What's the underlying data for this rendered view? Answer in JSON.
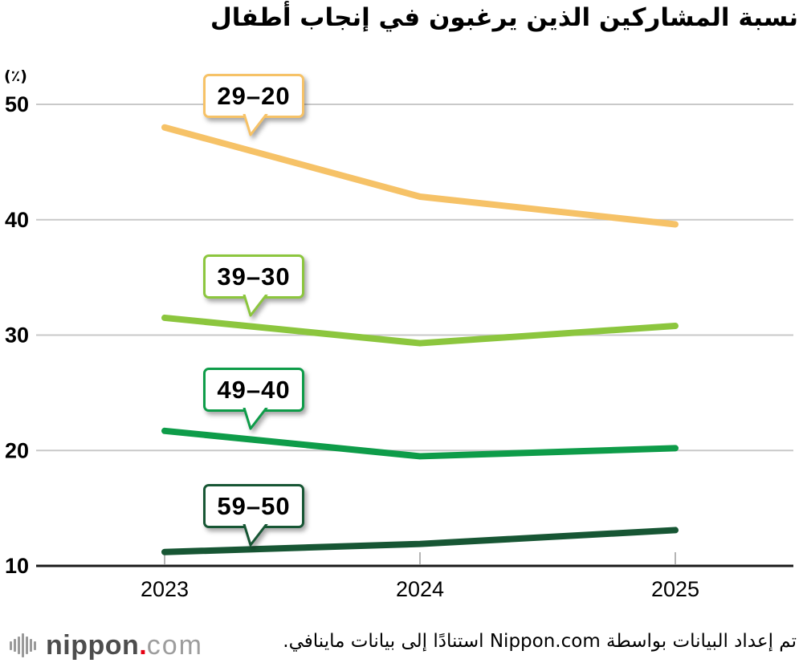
{
  "title": "نسبة المشاركين الذين يرغبون في إنجاب أطفال",
  "unit_label": "(٪)",
  "chart_data": {
    "type": "line",
    "title": "نسبة المشاركين الذين يرغبون في إنجاب أطفال",
    "ylabel": "(٪)",
    "categories": [
      "2023",
      "2024",
      "2025"
    ],
    "series": [
      {
        "name": "20–29",
        "label_display": "29–20",
        "color": "#F6C267",
        "values": [
          48.0,
          42.0,
          39.6
        ]
      },
      {
        "name": "30–39",
        "label_display": "39–30",
        "color": "#8CC63E",
        "values": [
          31.5,
          29.3,
          30.8
        ]
      },
      {
        "name": "40–49",
        "label_display": "49–40",
        "color": "#0E9C49",
        "values": [
          21.7,
          19.5,
          20.2
        ]
      },
      {
        "name": "50–59",
        "label_display": "59–50",
        "color": "#175634",
        "values": [
          11.2,
          11.9,
          13.1
        ]
      }
    ],
    "ylim": [
      10,
      52
    ],
    "yticks": [
      10,
      20,
      30,
      40,
      50
    ],
    "grid": "horizontal-gridlines",
    "grid_color": "#C9C9C9",
    "axis_color": "#1A1A1A",
    "legend_position": "callout-labels-on-lines"
  },
  "footer": {
    "logo": {
      "icon": "bars-icon",
      "text_main": "nippon",
      "text_dot": ".",
      "text_suffix": "com",
      "dot_color": "#E60012"
    },
    "source_text": "تم إعداد البيانات بواسطة Nippon.com استنادًا إلى بيانات ماينافي."
  }
}
